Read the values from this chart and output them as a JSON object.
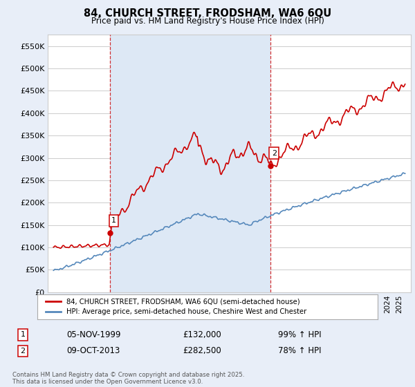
{
  "title": "84, CHURCH STREET, FRODSHAM, WA6 6QU",
  "subtitle": "Price paid vs. HM Land Registry's House Price Index (HPI)",
  "background_color": "#e8eef8",
  "plot_background": "#ffffff",
  "shade_color": "#dde8f5",
  "ylim": [
    0,
    575000
  ],
  "yticks": [
    0,
    50000,
    100000,
    150000,
    200000,
    250000,
    300000,
    350000,
    400000,
    450000,
    500000,
    550000
  ],
  "ytick_labels": [
    "£0",
    "£50K",
    "£100K",
    "£150K",
    "£200K",
    "£250K",
    "£300K",
    "£350K",
    "£400K",
    "£450K",
    "£500K",
    "£550K"
  ],
  "marker1_value": 132000,
  "marker1_label": "1",
  "marker2_value": 282500,
  "marker2_label": "2",
  "red_line_color": "#cc0000",
  "blue_line_color": "#5588bb",
  "vline_color": "#cc0000",
  "grid_color": "#cccccc",
  "legend_label_red": "84, CHURCH STREET, FRODSHAM, WA6 6QU (semi-detached house)",
  "legend_label_blue": "HPI: Average price, semi-detached house, Cheshire West and Chester",
  "annotation1_date": "05-NOV-1999",
  "annotation1_price": "£132,000",
  "annotation1_hpi": "99% ↑ HPI",
  "annotation2_date": "09-OCT-2013",
  "annotation2_price": "£282,500",
  "annotation2_hpi": "78% ↑ HPI",
  "footer": "Contains HM Land Registry data © Crown copyright and database right 2025.\nThis data is licensed under the Open Government Licence v3.0.",
  "x_start_year": 1995,
  "x_end_year": 2025
}
